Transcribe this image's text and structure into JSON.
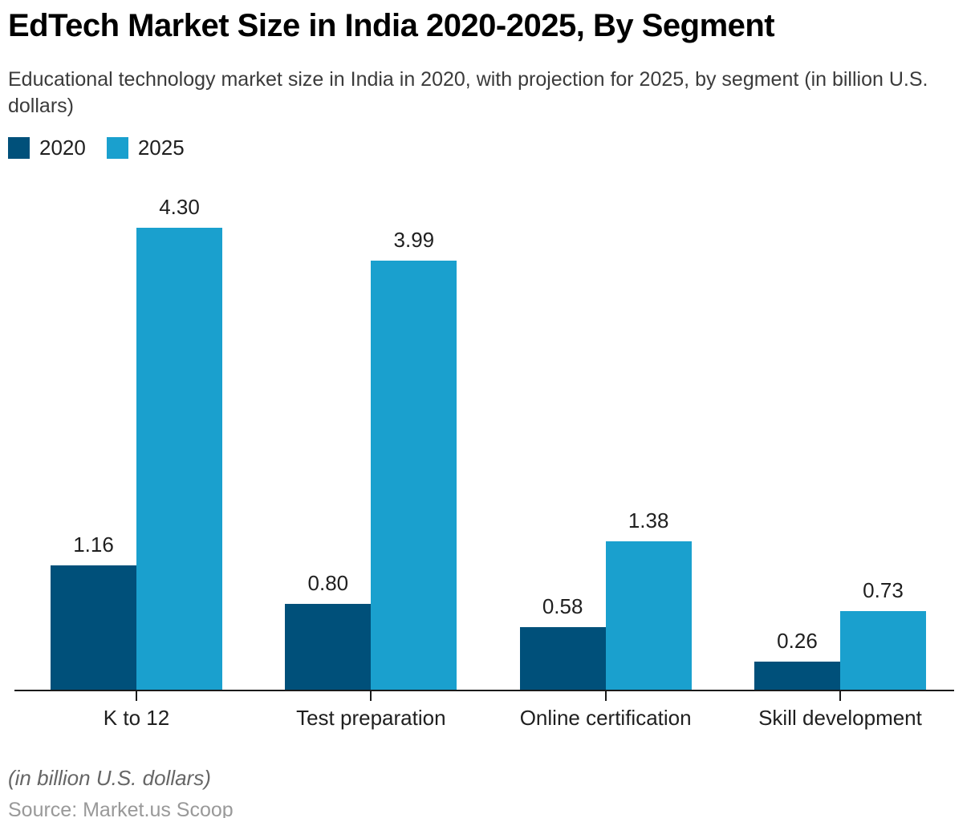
{
  "header": {
    "title": "EdTech Market Size in India 2020-2025, By Segment",
    "subtitle": "Educational technology market size in India in 2020, with projection for 2025, by segment (in billion U.S. dollars)"
  },
  "footer": {
    "note": "(in billion U.S. dollars)",
    "source": "Source: Market.us Scoop"
  },
  "chart_data": {
    "type": "bar",
    "title": "EdTech Market Size in India 2020-2025, By Segment",
    "categories": [
      "K to 12",
      "Test preparation",
      "Online certification",
      "Skill development"
    ],
    "series": [
      {
        "name": "2020",
        "color": "#00507a",
        "values": [
          1.16,
          0.8,
          0.58,
          0.26
        ]
      },
      {
        "name": "2025",
        "color": "#1aa0ce",
        "values": [
          4.3,
          3.99,
          1.38,
          0.73
        ]
      }
    ],
    "value_labels": [
      [
        "1.16",
        "0.80",
        "0.58",
        "0.26"
      ],
      [
        "4.30",
        "3.99",
        "1.38",
        "0.73"
      ]
    ],
    "unit": "billion U.S. dollars",
    "xlabel": "",
    "ylabel": "",
    "ylim": [
      0,
      4.57
    ],
    "grid": false,
    "axis_color": "#1a1a1a",
    "legend_position": "top-left"
  }
}
